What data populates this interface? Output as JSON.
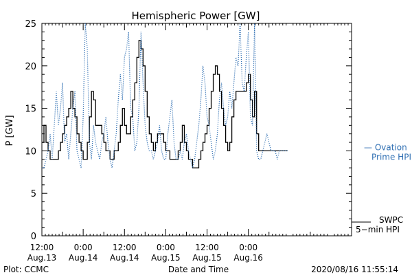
{
  "chart_data": {
    "type": "line",
    "title": "Hemispheric Power [GW]",
    "ylabel": "P [GW]",
    "xlabel": "Date and Time",
    "ylim": [
      0,
      25
    ],
    "yticks": [
      0,
      5,
      10,
      15,
      20,
      25
    ],
    "xlim": [
      0,
      90
    ],
    "x_unit": "hours since 2020-08-13 12:00",
    "xticks": [
      {
        "t": 0,
        "time": "12:00",
        "date": "Aug.13"
      },
      {
        "t": 12,
        "time": "0:00",
        "date": "Aug.14"
      },
      {
        "t": 24,
        "time": "12:00",
        "date": "Aug.14"
      },
      {
        "t": 36,
        "time": "0:00",
        "date": "Aug.15"
      },
      {
        "t": 48,
        "time": "12:00",
        "date": "Aug.15"
      },
      {
        "t": 60,
        "time": "0:00",
        "date": "Aug.16"
      }
    ],
    "series": [
      {
        "name": "SWPC 5-min HPI",
        "label_line1": "SWPC",
        "label_line2": "5−min HPI",
        "color": "#000000",
        "style": "solid",
        "x": [
          0,
          0.6,
          1.2,
          1.8,
          2.4,
          3,
          3.6,
          4.2,
          4.8,
          5.4,
          6,
          6.6,
          7.2,
          7.8,
          8.4,
          9,
          9.6,
          10.2,
          10.8,
          11.4,
          12,
          12.6,
          13.2,
          13.8,
          14.4,
          15,
          15.6,
          16.2,
          16.8,
          17.4,
          18,
          18.6,
          19.2,
          19.8,
          20.4,
          21,
          21.6,
          22.2,
          22.8,
          23.4,
          24,
          24.6,
          25.2,
          25.8,
          26.4,
          27,
          27.6,
          28.2,
          28.8,
          29.4,
          30,
          30.6,
          31.2,
          31.8,
          32.4,
          33,
          33.6,
          34.2,
          34.8,
          35.4,
          36,
          36.6,
          37.2,
          37.8,
          38.4,
          39,
          39.6,
          40.2,
          40.8,
          41.4,
          42,
          42.6,
          43.2,
          43.8,
          44.4,
          45,
          45.6,
          46.2,
          46.8,
          47.4,
          48,
          48.6,
          49.2,
          49.8,
          50.4,
          51,
          51.6,
          52.2,
          52.8,
          53.4,
          54,
          54.6,
          55.2,
          55.8,
          56.4,
          57,
          57.6,
          58.2,
          58.8,
          59.4,
          60,
          60.6,
          61.2,
          61.8,
          62.4,
          63,
          63.6,
          64.2,
          64.8,
          65.4,
          66,
          66.6,
          67.2,
          67.8,
          68.4,
          69,
          69.6,
          70.2,
          70.8,
          71.4
        ],
        "values": [
          11,
          13,
          11,
          10,
          9,
          9,
          9,
          9,
          10,
          11,
          12,
          13,
          14,
          15,
          17,
          15,
          14,
          12,
          11,
          10,
          9,
          9,
          11,
          14,
          17,
          16,
          13,
          13,
          13,
          12,
          11,
          10,
          10,
          9,
          9,
          10,
          10,
          11,
          13,
          15,
          13,
          12,
          12,
          14,
          16,
          18,
          21,
          23,
          22,
          20,
          17,
          14,
          12,
          11,
          10,
          11,
          12,
          12,
          12,
          11,
          10,
          10,
          9,
          9,
          9,
          9,
          10,
          11,
          13,
          11,
          10,
          9,
          9,
          8,
          8,
          8,
          9,
          10,
          11,
          12,
          13,
          15,
          17,
          19,
          20,
          19,
          17,
          15,
          13,
          11,
          10,
          11,
          14,
          16,
          17,
          17,
          17,
          17,
          17,
          18,
          19,
          16,
          14,
          17,
          12,
          10,
          10,
          10,
          10,
          10,
          10,
          10,
          10,
          10,
          10,
          10,
          10,
          10,
          10,
          10
        ]
      },
      {
        "name": "Ovation Prime HPI",
        "label_line1": "— Ovation",
        "label_line2": "Prime HPI",
        "color": "#2f6fb3",
        "style": "dotted",
        "x": [
          0,
          0.6,
          1.2,
          1.8,
          2.4,
          3,
          3.6,
          4.2,
          4.8,
          5.4,
          6,
          6.6,
          7.2,
          7.8,
          8.4,
          9,
          9.6,
          10.2,
          10.8,
          11.4,
          12,
          12.6,
          13.2,
          13.8,
          14.4,
          15,
          15.6,
          16.2,
          16.8,
          17.4,
          18,
          18.6,
          19.2,
          19.8,
          20.4,
          21,
          21.6,
          22.2,
          22.8,
          23.4,
          24,
          24.6,
          25.2,
          25.8,
          26.4,
          27,
          27.6,
          28.2,
          28.8,
          29.4,
          30,
          30.6,
          31.2,
          31.8,
          32.4,
          33,
          33.6,
          34.2,
          34.8,
          35.4,
          36,
          36.6,
          37.2,
          37.8,
          38.4,
          39,
          39.6,
          40.2,
          40.8,
          41.4,
          42,
          42.6,
          43.2,
          43.8,
          44.4,
          45,
          45.6,
          46.2,
          46.8,
          47.4,
          48,
          48.6,
          49.2,
          49.8,
          50.4,
          51,
          51.6,
          52.2,
          52.8,
          53.4,
          54,
          54.6,
          55.2,
          55.8,
          56.4,
          57,
          57.6,
          58.2,
          58.8,
          59.4,
          60,
          60.6,
          61.2,
          61.8,
          62.4,
          63,
          63.6,
          64.2,
          64.8,
          65.4,
          66,
          66.6,
          67.2,
          67.8,
          68.4,
          69,
          69.6,
          70.2,
          70.8,
          71.4
        ],
        "values": [
          8,
          8,
          9,
          10,
          12,
          9,
          13,
          17,
          13,
          15,
          18,
          11,
          12,
          9,
          12,
          15,
          17,
          10,
          9,
          8,
          14,
          25,
          22,
          11,
          9,
          13,
          11,
          10,
          9,
          11,
          12,
          14,
          11,
          9,
          8,
          10,
          12,
          16,
          19,
          16,
          21,
          22,
          24,
          15,
          14,
          10,
          11,
          15,
          24,
          18,
          13,
          11,
          10,
          10,
          9,
          10,
          11,
          13,
          10,
          9,
          9,
          12,
          14,
          16,
          11,
          9,
          9,
          10,
          9,
          11,
          12,
          10,
          9,
          8,
          9,
          11,
          13,
          16,
          20,
          18,
          14,
          13,
          11,
          9,
          10,
          12,
          16,
          18,
          15,
          13,
          14,
          17,
          15,
          18,
          21,
          20,
          25,
          18,
          17,
          21,
          24,
          14,
          13,
          25,
          10,
          9,
          9,
          10,
          11,
          12,
          11,
          10,
          10,
          10,
          9,
          10,
          10,
          10,
          10,
          10
        ]
      }
    ]
  },
  "footer": {
    "left": "Plot: CCMC",
    "right": "2020/08/16 11:55:14"
  }
}
